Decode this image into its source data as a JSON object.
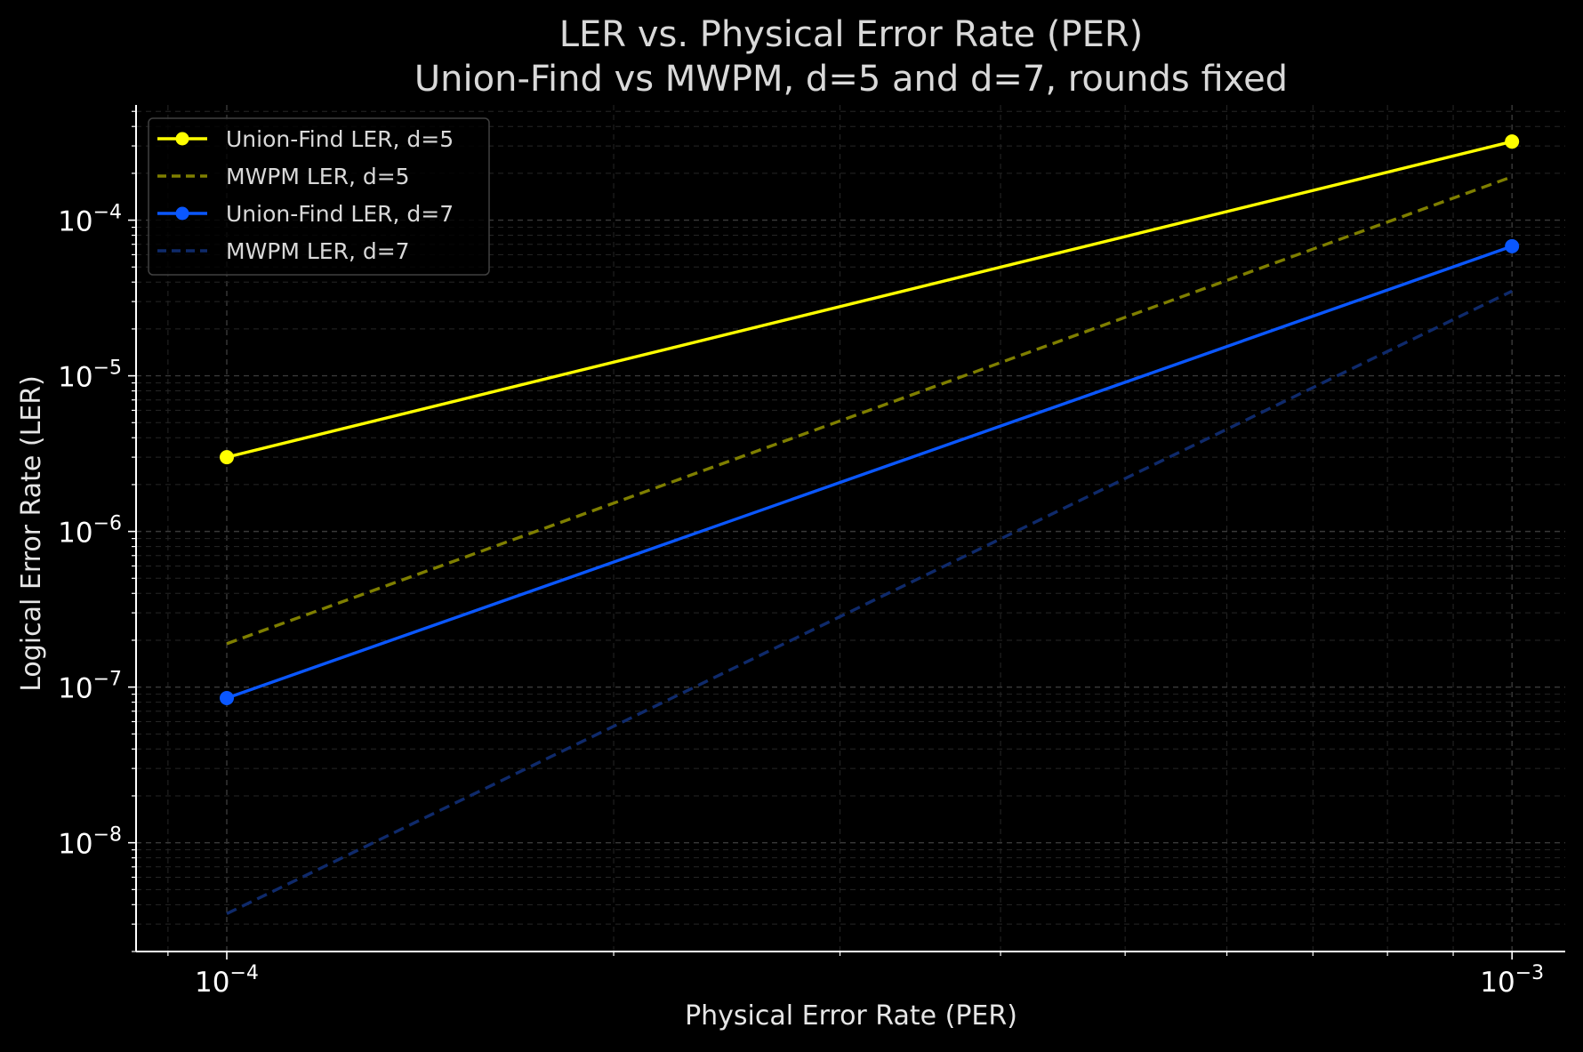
{
  "chart_data": {
    "type": "line",
    "title_line1": "LER vs. Physical Error Rate (PER)",
    "title_line2": "Union-Find vs MWPM, d=5 and d=7, rounds fixed",
    "xlabel": "Physical Error Rate (PER)",
    "ylabel": "Logical Error Rate (LER)",
    "x_scale": "log",
    "y_scale": "log",
    "xlim": [
      8.5e-05,
      0.0011
    ],
    "ylim": [
      2e-09,
      0.00055
    ],
    "x_ticks": [
      {
        "value": 0.0001,
        "base": "10",
        "exp": "−4"
      },
      {
        "value": 0.001,
        "base": "10",
        "exp": "−3"
      }
    ],
    "y_ticks": [
      {
        "value": 1e-08,
        "base": "10",
        "exp": "−8"
      },
      {
        "value": 1e-07,
        "base": "10",
        "exp": "−7"
      },
      {
        "value": 1e-06,
        "base": "10",
        "exp": "−6"
      },
      {
        "value": 1e-05,
        "base": "10",
        "exp": "−5"
      },
      {
        "value": 0.0001,
        "base": "10",
        "exp": "−4"
      }
    ],
    "grid": true,
    "legend_position": "top-left",
    "series": [
      {
        "name": "Union-Find LER, d=5",
        "color": "#ffff00",
        "style": "solid",
        "markers": true,
        "x": [
          0.0001,
          0.001
        ],
        "y": [
          3e-06,
          0.00032
        ]
      },
      {
        "name": "MWPM LER, d=5",
        "color": "#7f7f00",
        "style": "dashed",
        "markers": false,
        "x": [
          0.0001,
          0.001
        ],
        "y": [
          1.9e-07,
          0.00019
        ]
      },
      {
        "name": "Union-Find LER, d=7",
        "color": "#0a57ff",
        "style": "solid",
        "markers": true,
        "x": [
          0.0001,
          0.001
        ],
        "y": [
          8.5e-08,
          6.8e-05
        ]
      },
      {
        "name": "MWPM LER, d=7",
        "color": "#0f2a6b",
        "style": "dashed",
        "markers": false,
        "x": [
          0.0001,
          0.001
        ],
        "y": [
          3.5e-09,
          3.5e-05
        ]
      }
    ]
  }
}
